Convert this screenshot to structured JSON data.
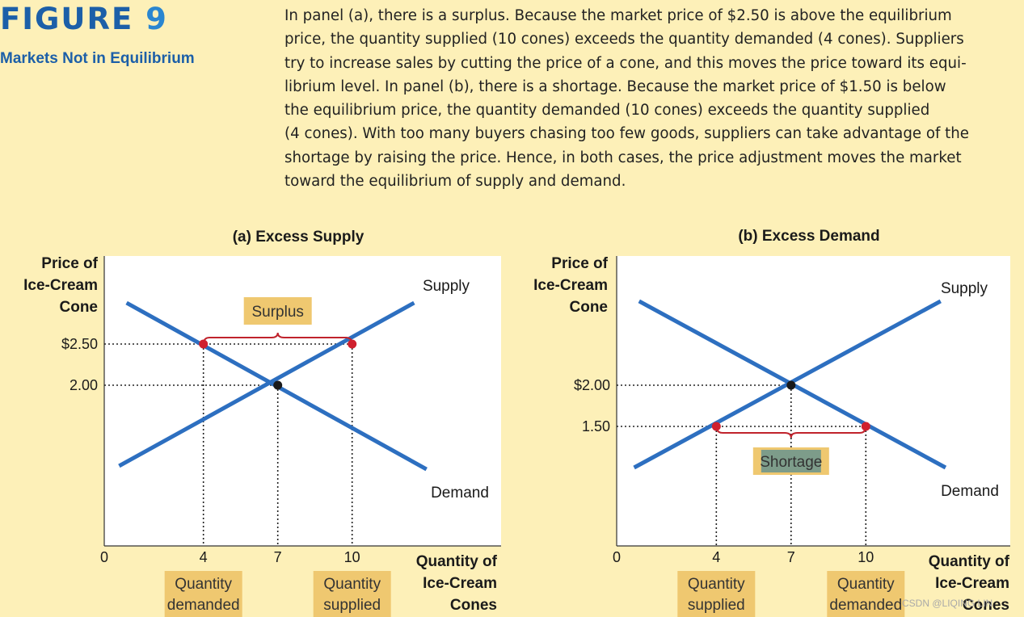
{
  "figure": {
    "label": "FIGURE",
    "number": "9",
    "subtitle": "Markets Not in Equilibrium"
  },
  "caption_lines": [
    "In panel (a), there is a surplus. Because the market price of $2.50 is above the equilibrium",
    "price, the quantity supplied (10 cones) exceeds the quantity demanded (4 cones). Suppliers",
    "try to increase sales by cutting the price of a cone, and this moves the price toward its equi-",
    "librium level. In panel (b), there is a shortage. Because the market price of $1.50 is below",
    "the equilibrium price, the quantity demanded (10 cones) exceeds the quantity supplied",
    "(4 cones). With too many buyers chasing too few goods, suppliers can take advantage of the",
    "shortage by raising the price. Hence, in both cases, the price adjustment moves the market",
    "toward the equilibrium of supply and demand."
  ],
  "colors": {
    "curve": "#2d6fc0",
    "highlight_point": "#d0202e",
    "equilibrium_point": "#1a1a1a",
    "bracket": "#c0232c",
    "label_box": "#efc870",
    "shortage_box": "#7d9c8a",
    "plot_bg": "#ffffff",
    "page_bg": "#fdf0b8"
  },
  "watermark": "CSDN @LIQING LIN",
  "chart_data": [
    {
      "type": "line",
      "title": "(a) Excess Supply",
      "ylabel": [
        "Price of",
        "Ice-Cream",
        "Cone"
      ],
      "xlabel": [
        "Quantity of",
        "Ice-Cream",
        "Cones"
      ],
      "x_origin_label": "0",
      "xticks": [
        {
          "value": 4,
          "label": "4"
        },
        {
          "value": 7,
          "label": "7"
        },
        {
          "value": 10,
          "label": "10"
        }
      ],
      "yticks": [
        {
          "value": 2.5,
          "label": "$2.50"
        },
        {
          "value": 2.0,
          "label": "2.00"
        }
      ],
      "series": [
        {
          "name": "Supply",
          "x": [
            0.6,
            12.5
          ],
          "y": [
            1.02,
            3.0
          ]
        },
        {
          "name": "Demand",
          "x": [
            0.9,
            13.0
          ],
          "y": [
            3.0,
            0.98
          ]
        }
      ],
      "equilibrium": {
        "x": 7,
        "y": 2.0
      },
      "market_price": 2.5,
      "points": [
        {
          "x": 4,
          "y": 2.5
        },
        {
          "x": 10,
          "y": 2.5
        }
      ],
      "bracket": {
        "from": 4,
        "to": 10,
        "label": "Surplus"
      },
      "x_boxes": [
        {
          "x": 4,
          "lines": [
            "Quantity",
            "demanded"
          ]
        },
        {
          "x": 10,
          "lines": [
            "Quantity",
            "supplied"
          ]
        }
      ]
    },
    {
      "type": "line",
      "title": "(b) Excess Demand",
      "ylabel": [
        "Price of",
        "Ice-Cream",
        "Cone"
      ],
      "xlabel": [
        "Quantity of",
        "Ice-Cream",
        "Cones"
      ],
      "x_origin_label": "0",
      "xticks": [
        {
          "value": 4,
          "label": "4"
        },
        {
          "value": 7,
          "label": "7"
        },
        {
          "value": 10,
          "label": "10"
        }
      ],
      "yticks": [
        {
          "value": 2.0,
          "label": "$2.00"
        },
        {
          "value": 1.5,
          "label": "1.50"
        }
      ],
      "series": [
        {
          "name": "Supply",
          "x": [
            0.7,
            13.0
          ],
          "y": [
            1.0,
            3.02
          ]
        },
        {
          "name": "Demand",
          "x": [
            0.9,
            13.2
          ],
          "y": [
            3.02,
            1.0
          ]
        }
      ],
      "equilibrium": {
        "x": 7,
        "y": 2.0
      },
      "market_price": 1.5,
      "points": [
        {
          "x": 4,
          "y": 1.5
        },
        {
          "x": 10,
          "y": 1.5
        }
      ],
      "bracket": {
        "from": 4,
        "to": 10,
        "label": "Shortage"
      },
      "x_boxes": [
        {
          "x": 4,
          "lines": [
            "Quantity",
            "supplied"
          ]
        },
        {
          "x": 10,
          "lines": [
            "Quantity",
            "demanded"
          ]
        }
      ]
    }
  ]
}
